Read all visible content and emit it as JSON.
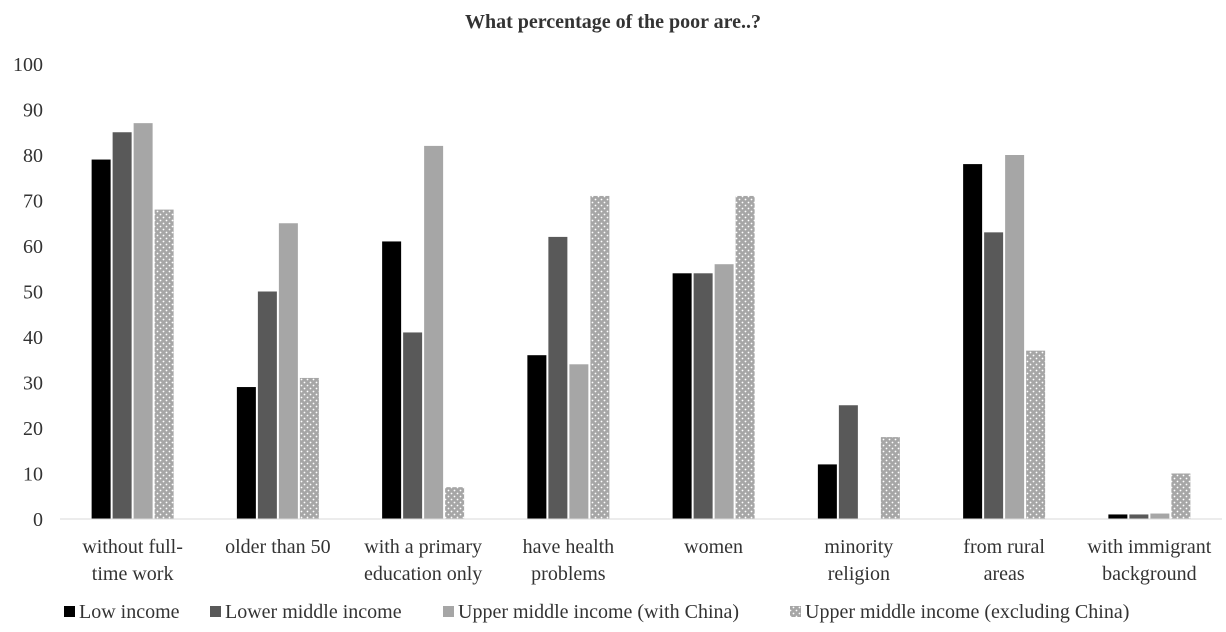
{
  "chart_data": {
    "type": "bar",
    "title": "What percentage of the poor are..?",
    "categories": [
      [
        "without full-",
        "time work"
      ],
      [
        "older than 50"
      ],
      [
        "with a primary",
        "education only"
      ],
      [
        "have health",
        "problems"
      ],
      [
        "women"
      ],
      [
        "minority",
        "religion"
      ],
      [
        "from rural",
        "areas"
      ],
      [
        "with immigrant",
        "background"
      ]
    ],
    "series": [
      {
        "name": "Low income",
        "color": "#000000",
        "pattern": "solid",
        "values": [
          79,
          29,
          61,
          36,
          54,
          12,
          78,
          1
        ]
      },
      {
        "name": "Lower middle income",
        "color": "#595959",
        "pattern": "solid",
        "values": [
          85,
          50,
          41,
          62,
          54,
          25,
          63,
          1
        ]
      },
      {
        "name": "Upper middle income (with China)",
        "color": "#a6a6a6",
        "pattern": "solid",
        "values": [
          87,
          65,
          82,
          34,
          56,
          0,
          80,
          1.2
        ]
      },
      {
        "name": "Upper middle income (excluding China)",
        "color": "#a6a6a6",
        "pattern": "dotted",
        "values": [
          68,
          31,
          7,
          71,
          71,
          18,
          37,
          10
        ]
      }
    ],
    "xlabel": "",
    "ylabel": "",
    "ylim": [
      0,
      100
    ],
    "yticks": [
      0,
      10,
      20,
      30,
      40,
      50,
      60,
      70,
      80,
      90,
      100
    ],
    "grid": false,
    "legend": "bottom"
  }
}
